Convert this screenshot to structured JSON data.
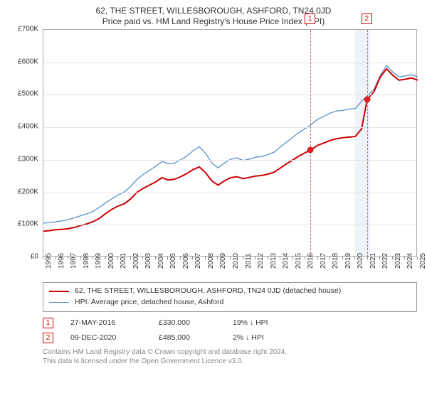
{
  "title_line1": "62, THE STREET, WILLESBOROUGH, ASHFORD, TN24 0JD",
  "title_line2": "Price paid vs. HM Land Registry's House Price Index (HPI)",
  "y_axis": {
    "min": 0,
    "max": 700000,
    "ticks": [
      0,
      100000,
      200000,
      300000,
      400000,
      500000,
      600000,
      700000
    ],
    "labels": [
      "£0",
      "£100K",
      "£200K",
      "£300K",
      "£400K",
      "£500K",
      "£600K",
      "£700K"
    ]
  },
  "x_axis": {
    "min": 1995,
    "max": 2025,
    "labels": [
      "1995",
      "1996",
      "1997",
      "1998",
      "1999",
      "2000",
      "2001",
      "2002",
      "2003",
      "2004",
      "2005",
      "2006",
      "2007",
      "2008",
      "2009",
      "2010",
      "2011",
      "2012",
      "2013",
      "2014",
      "2015",
      "2016",
      "2017",
      "2018",
      "2019",
      "2020",
      "2021",
      "2022",
      "2023",
      "2024",
      "2025"
    ]
  },
  "highlight_band": {
    "from": 2020.0,
    "to": 2021.2,
    "color": "#edf3fa"
  },
  "series": {
    "property": {
      "label": "62, THE STREET, WILLESBOROUGH, ASHFORD, TN24 0JD (detached house)",
      "color": "#cc0000",
      "width": 2,
      "points": [
        [
          1995,
          80000
        ],
        [
          1995.5,
          82000
        ],
        [
          1996,
          85000
        ],
        [
          1996.5,
          86000
        ],
        [
          1997,
          88000
        ],
        [
          1997.5,
          92000
        ],
        [
          1998,
          98000
        ],
        [
          1998.5,
          103000
        ],
        [
          1999,
          110000
        ],
        [
          1999.5,
          120000
        ],
        [
          2000,
          135000
        ],
        [
          2000.5,
          148000
        ],
        [
          2001,
          158000
        ],
        [
          2001.5,
          165000
        ],
        [
          2002,
          180000
        ],
        [
          2002.5,
          200000
        ],
        [
          2003,
          212000
        ],
        [
          2003.5,
          222000
        ],
        [
          2004,
          232000
        ],
        [
          2004.5,
          245000
        ],
        [
          2005,
          238000
        ],
        [
          2005.5,
          240000
        ],
        [
          2006,
          248000
        ],
        [
          2006.5,
          258000
        ],
        [
          2007,
          270000
        ],
        [
          2007.5,
          278000
        ],
        [
          2008,
          260000
        ],
        [
          2008.5,
          235000
        ],
        [
          2009,
          222000
        ],
        [
          2009.5,
          235000
        ],
        [
          2010,
          245000
        ],
        [
          2010.5,
          248000
        ],
        [
          2011,
          242000
        ],
        [
          2011.5,
          246000
        ],
        [
          2012,
          250000
        ],
        [
          2012.5,
          252000
        ],
        [
          2013,
          256000
        ],
        [
          2013.5,
          262000
        ],
        [
          2014,
          275000
        ],
        [
          2014.5,
          288000
        ],
        [
          2015,
          300000
        ],
        [
          2015.5,
          312000
        ],
        [
          2016,
          322000
        ],
        [
          2016.4,
          330000
        ],
        [
          2017,
          345000
        ],
        [
          2017.5,
          352000
        ],
        [
          2018,
          360000
        ],
        [
          2018.5,
          365000
        ],
        [
          2019,
          368000
        ],
        [
          2019.5,
          370000
        ],
        [
          2020,
          372000
        ],
        [
          2020.5,
          395000
        ],
        [
          2020.94,
          485000
        ],
        [
          2021.5,
          510000
        ],
        [
          2022,
          555000
        ],
        [
          2022.5,
          580000
        ],
        [
          2023,
          560000
        ],
        [
          2023.5,
          545000
        ],
        [
          2024,
          548000
        ],
        [
          2024.5,
          552000
        ],
        [
          2025,
          545000
        ]
      ]
    },
    "hpi": {
      "label": "HPI: Average price, detached house, Ashford",
      "color": "#5b8fc7",
      "width": 1.3,
      "points": [
        [
          1995,
          105000
        ],
        [
          1995.5,
          107000
        ],
        [
          1996,
          109000
        ],
        [
          1996.5,
          112000
        ],
        [
          1997,
          116000
        ],
        [
          1997.5,
          122000
        ],
        [
          1998,
          128000
        ],
        [
          1998.5,
          134000
        ],
        [
          1999,
          142000
        ],
        [
          1999.5,
          154000
        ],
        [
          2000,
          168000
        ],
        [
          2000.5,
          180000
        ],
        [
          2001,
          192000
        ],
        [
          2001.5,
          202000
        ],
        [
          2002,
          218000
        ],
        [
          2002.5,
          240000
        ],
        [
          2003,
          255000
        ],
        [
          2003.5,
          268000
        ],
        [
          2004,
          280000
        ],
        [
          2004.5,
          295000
        ],
        [
          2005,
          288000
        ],
        [
          2005.5,
          290000
        ],
        [
          2006,
          300000
        ],
        [
          2006.5,
          312000
        ],
        [
          2007,
          328000
        ],
        [
          2007.5,
          340000
        ],
        [
          2008,
          320000
        ],
        [
          2008.5,
          290000
        ],
        [
          2009,
          275000
        ],
        [
          2009.5,
          290000
        ],
        [
          2010,
          302000
        ],
        [
          2010.5,
          306000
        ],
        [
          2011,
          298000
        ],
        [
          2011.5,
          302000
        ],
        [
          2012,
          308000
        ],
        [
          2012.5,
          310000
        ],
        [
          2013,
          316000
        ],
        [
          2013.5,
          324000
        ],
        [
          2014,
          340000
        ],
        [
          2014.5,
          355000
        ],
        [
          2015,
          370000
        ],
        [
          2015.5,
          385000
        ],
        [
          2016,
          396000
        ],
        [
          2016.5,
          410000
        ],
        [
          2017,
          425000
        ],
        [
          2017.5,
          434000
        ],
        [
          2018,
          444000
        ],
        [
          2018.5,
          450000
        ],
        [
          2019,
          452000
        ],
        [
          2019.5,
          456000
        ],
        [
          2020,
          458000
        ],
        [
          2020.5,
          480000
        ],
        [
          2021,
          498000
        ],
        [
          2021.5,
          518000
        ],
        [
          2022,
          560000
        ],
        [
          2022.5,
          590000
        ],
        [
          2023,
          570000
        ],
        [
          2023.5,
          555000
        ],
        [
          2024,
          558000
        ],
        [
          2024.5,
          562000
        ],
        [
          2025,
          555000
        ]
      ]
    }
  },
  "sale_markers": [
    {
      "n": "1",
      "x": 2016.4,
      "y": 330000,
      "date": "27-MAY-2016",
      "amount": "£330,000",
      "delta": "19% ↓ HPI"
    },
    {
      "n": "2",
      "x": 2020.94,
      "y": 485000,
      "date": "09-DEC-2020",
      "amount": "£485,000",
      "delta": "2% ↓ HPI"
    }
  ],
  "marker_line_color": "#cc6666",
  "dot_color": "#e02020",
  "footnote1": "Contains HM Land Registry data © Crown copyright and database right 2024.",
  "footnote2": "This data is licensed under the Open Government Licence v3.0."
}
